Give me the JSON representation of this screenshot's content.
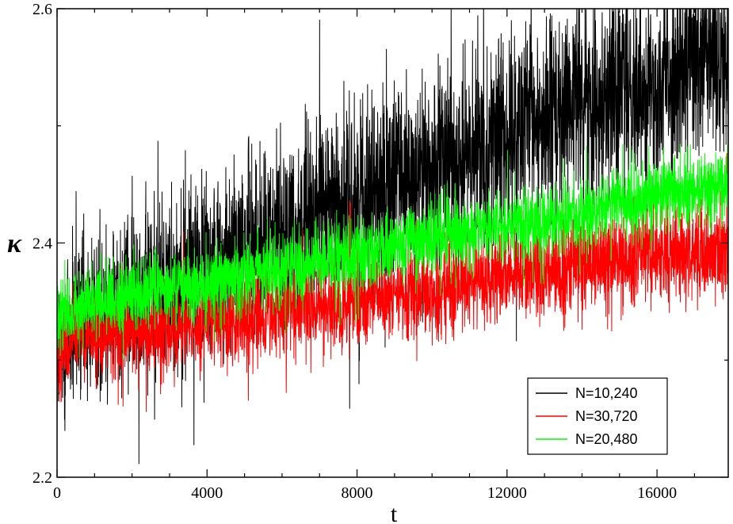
{
  "chart_data": {
    "type": "line",
    "title": "",
    "xlabel": "t",
    "ylabel": "κ",
    "xlim": [
      0,
      17900
    ],
    "ylim": [
      2.2,
      2.6
    ],
    "x_ticks": [
      {
        "value": 0,
        "label": "0"
      },
      {
        "value": 4000,
        "label": "4000"
      },
      {
        "value": 8000,
        "label": "8000"
      },
      {
        "value": 12000,
        "label": "12000"
      },
      {
        "value": 16000,
        "label": "16000"
      }
    ],
    "y_ticks": [
      {
        "value": 2.2,
        "label": "2.2"
      },
      {
        "value": 2.4,
        "label": "2.4"
      },
      {
        "value": 2.6,
        "label": "2.6"
      }
    ],
    "x_minor_step": 1000,
    "y_minor_step": 0.1,
    "grid": false,
    "legend_position": "bottom-right",
    "series": [
      {
        "name": "N=10,240",
        "color": "#000000",
        "draw_order": 0,
        "x": [
          0,
          500,
          2000,
          4000,
          6000,
          8000,
          10000,
          12000,
          14000,
          16000,
          17900
        ],
        "y_center": [
          2.3,
          2.33,
          2.36,
          2.38,
          2.41,
          2.44,
          2.46,
          2.49,
          2.52,
          2.54,
          2.56
        ],
        "spread": [
          0.12,
          0.11,
          0.11,
          0.11,
          0.11,
          0.12,
          0.12,
          0.12,
          0.12,
          0.12,
          0.12
        ],
        "points": 3600
      },
      {
        "name": "N=30,720",
        "color": "#ff0000",
        "draw_order": 1,
        "x": [
          0,
          500,
          2000,
          4000,
          6000,
          8000,
          10000,
          12000,
          14000,
          16000,
          17900
        ],
        "y_center": [
          2.31,
          2.32,
          2.325,
          2.33,
          2.34,
          2.35,
          2.36,
          2.37,
          2.38,
          2.39,
          2.395
        ],
        "spread": [
          0.06,
          0.055,
          0.055,
          0.055,
          0.055,
          0.055,
          0.055,
          0.055,
          0.06,
          0.06,
          0.06
        ],
        "points": 3600
      },
      {
        "name": "N=20,480",
        "color": "#00ff00",
        "draw_order": 2,
        "x": [
          0,
          500,
          2000,
          4000,
          6000,
          8000,
          10000,
          12000,
          14000,
          16000,
          17900
        ],
        "y_center": [
          2.33,
          2.345,
          2.355,
          2.365,
          2.38,
          2.39,
          2.405,
          2.415,
          2.425,
          2.44,
          2.45
        ],
        "spread": [
          0.055,
          0.045,
          0.045,
          0.045,
          0.045,
          0.045,
          0.045,
          0.045,
          0.045,
          0.045,
          0.045
        ],
        "points": 3600
      }
    ],
    "legend_order": [
      "N=10,240",
      "N=30,720",
      "N=20,480"
    ]
  }
}
